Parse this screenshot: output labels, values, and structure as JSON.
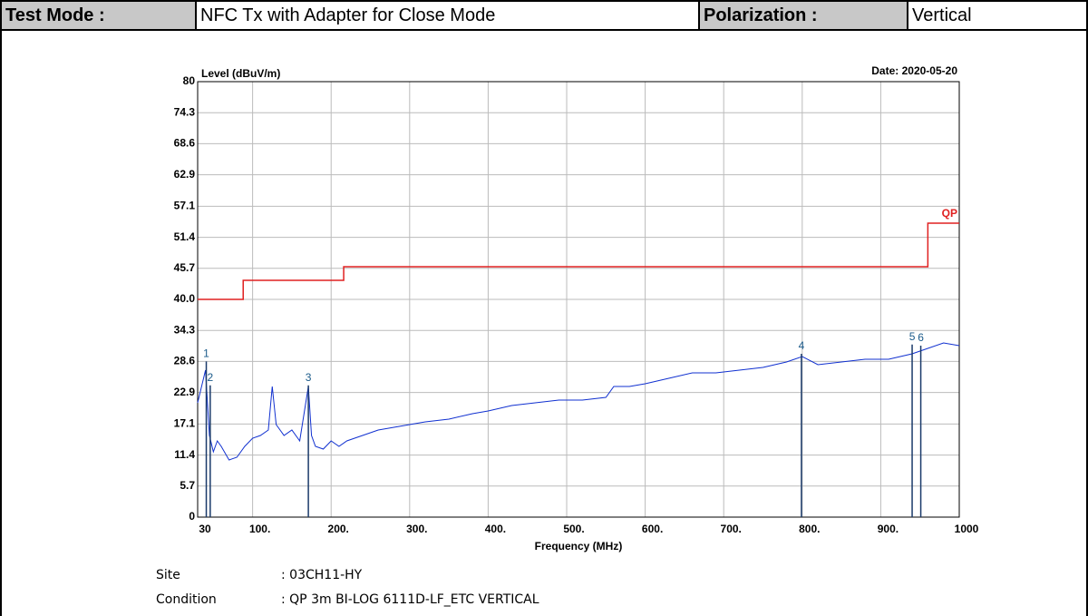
{
  "header": {
    "test_mode_label": "Test Mode :",
    "test_mode": "NFC Tx with Adapter for Close Mode",
    "polarization_label": "Polarization :",
    "polarization": "Vertical"
  },
  "footer": {
    "site_label": "Site",
    "site": ": 03CH11-HY",
    "condition_label": "Condition",
    "condition": ": QP 3m BI-LOG 6111D-LF_ETC VERTICAL"
  },
  "chart_data": {
    "type": "line",
    "y_label": "Level (dBuV/m)",
    "date": "Date: 2020-05-20",
    "x_label": "Frequency (MHz)",
    "xlim": [
      30,
      1000
    ],
    "ylim": [
      0,
      80
    ],
    "xticks": [
      30,
      {
        "value": 100,
        "label": "100."
      },
      {
        "value": 200,
        "label": "200."
      },
      {
        "value": 300,
        "label": "300."
      },
      {
        "value": 400,
        "label": "400."
      },
      {
        "value": 500,
        "label": "500."
      },
      {
        "value": 600,
        "label": "600."
      },
      {
        "value": 700,
        "label": "700."
      },
      {
        "value": 800,
        "label": "800."
      },
      {
        "value": 900,
        "label": "900."
      },
      1000
    ],
    "yticks": [
      0,
      5.7,
      11.4,
      17.1,
      22.9,
      28.6,
      34.3,
      {
        "value": 40,
        "label": "40.0"
      },
      45.7,
      51.4,
      57.1,
      62.9,
      68.6,
      74.3,
      80
    ],
    "grid": true,
    "series": [
      {
        "name": "QP",
        "color": "#e02020",
        "x": [
          30,
          88,
          88,
          216,
          216,
          960,
          960,
          1000
        ],
        "values": [
          40,
          40,
          43.5,
          43.5,
          46,
          46,
          54,
          54
        ]
      },
      {
        "name": null,
        "color": "#1030d0",
        "x": [
          30,
          35,
          40,
          45,
          50,
          55,
          60,
          70,
          80,
          90,
          100,
          110,
          120,
          125,
          130,
          140,
          150,
          160,
          171,
          175,
          180,
          190,
          200,
          210,
          220,
          240,
          260,
          280,
          300,
          320,
          350,
          380,
          400,
          430,
          460,
          490,
          520,
          550,
          560,
          580,
          600,
          630,
          660,
          690,
          720,
          750,
          780,
          800,
          820,
          850,
          880,
          910,
          940,
          960,
          980,
          1000
        ],
        "values": [
          21,
          24,
          27,
          15,
          12,
          14,
          13,
          10.5,
          11,
          13,
          14.5,
          15,
          16,
          24,
          17,
          15,
          16,
          14,
          24,
          15,
          13,
          12.5,
          14,
          13,
          14,
          15,
          16,
          16.5,
          17,
          17.5,
          18,
          19,
          19.5,
          20.5,
          21,
          21.5,
          21.5,
          22,
          24,
          24,
          24.5,
          25.5,
          26.5,
          26.5,
          27,
          27.5,
          28.5,
          29.5,
          28,
          28.5,
          29,
          29,
          30,
          31,
          32,
          31.5
        ]
      }
    ],
    "markers": [
      {
        "label": "1",
        "x": 41,
        "value": 28.6
      },
      {
        "label": "2",
        "x": 46,
        "value": 24.2
      },
      {
        "label": "3",
        "x": 171,
        "value": 24.2
      },
      {
        "label": "4",
        "x": 799,
        "value": 30
      },
      {
        "label": "5",
        "x": 940,
        "value": 31.7
      },
      {
        "label": "6",
        "x": 951,
        "value": 31.5
      }
    ]
  }
}
